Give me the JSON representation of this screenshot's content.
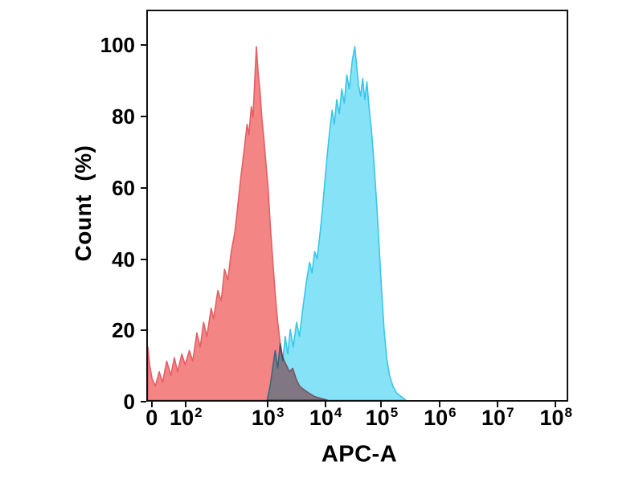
{
  "chart_data": {
    "type": "area",
    "chart_kind": "flow-cytometry-histogram-overlay",
    "title": "",
    "xlabel": "APC-A",
    "ylabel": "Count  (%)",
    "grid": false,
    "legend": "none",
    "axis_color": "#101010",
    "ylim": [
      0,
      110
    ],
    "y_ticks": [
      0,
      20,
      40,
      60,
      80,
      100
    ],
    "x_scale": "biexponential-log",
    "x_ticks": [
      {
        "base": "0",
        "exp": "",
        "pos": 0.013
      },
      {
        "base": "10",
        "exp": "2",
        "pos": 0.093
      },
      {
        "base": "10",
        "exp": "3",
        "pos": 0.287
      },
      {
        "base": "10",
        "exp": "4",
        "pos": 0.424
      },
      {
        "base": "10",
        "exp": "5",
        "pos": 0.557
      },
      {
        "base": "10",
        "exp": "6",
        "pos": 0.695
      },
      {
        "base": "10",
        "exp": "7",
        "pos": 0.832
      },
      {
        "base": "10",
        "exp": "8",
        "pos": 0.97
      }
    ],
    "x_unit": "fraction-of-axis-width",
    "y_unit": "percent-of-max-count",
    "series": [
      {
        "name": "red-histogram",
        "fill": "#F37E7E",
        "stroke": "#E35F63",
        "fill_opacity": 0.95,
        "blend": "",
        "peak": {
          "x_pos": 0.259,
          "y": 100
        },
        "points": [
          [
            0.0,
            15
          ],
          [
            0.004,
            10
          ],
          [
            0.01,
            6
          ],
          [
            0.018,
            4
          ],
          [
            0.027,
            8
          ],
          [
            0.035,
            5
          ],
          [
            0.045,
            11
          ],
          [
            0.055,
            7
          ],
          [
            0.063,
            12
          ],
          [
            0.071,
            8
          ],
          [
            0.081,
            13
          ],
          [
            0.089,
            10
          ],
          [
            0.099,
            14
          ],
          [
            0.107,
            11
          ],
          [
            0.117,
            19
          ],
          [
            0.125,
            15
          ],
          [
            0.133,
            22
          ],
          [
            0.141,
            18
          ],
          [
            0.151,
            26
          ],
          [
            0.157,
            23
          ],
          [
            0.167,
            31
          ],
          [
            0.175,
            28
          ],
          [
            0.183,
            37
          ],
          [
            0.191,
            34
          ],
          [
            0.199,
            42
          ],
          [
            0.207,
            47
          ],
          [
            0.213,
            53
          ],
          [
            0.219,
            60
          ],
          [
            0.225,
            66
          ],
          [
            0.231,
            72
          ],
          [
            0.237,
            78
          ],
          [
            0.241,
            75
          ],
          [
            0.247,
            83
          ],
          [
            0.251,
            80
          ],
          [
            0.255,
            90
          ],
          [
            0.259,
            100
          ],
          [
            0.263,
            93
          ],
          [
            0.268,
            87
          ],
          [
            0.272,
            80
          ],
          [
            0.277,
            74
          ],
          [
            0.282,
            67
          ],
          [
            0.287,
            60
          ],
          [
            0.292,
            50
          ],
          [
            0.298,
            40
          ],
          [
            0.304,
            30
          ],
          [
            0.31,
            22
          ],
          [
            0.316,
            16
          ],
          [
            0.322,
            12
          ],
          [
            0.33,
            10
          ],
          [
            0.338,
            8
          ],
          [
            0.346,
            9
          ],
          [
            0.354,
            6
          ],
          [
            0.362,
            4
          ],
          [
            0.372,
            3
          ],
          [
            0.384,
            2
          ],
          [
            0.398,
            1
          ],
          [
            0.412,
            0.5
          ],
          [
            0.428,
            0
          ]
        ]
      },
      {
        "name": "cyan-histogram",
        "fill": "#7CDFF6",
        "stroke": "#38C6E9",
        "fill_opacity": 0.92,
        "blend": "multiply",
        "peak": {
          "x_pos": 0.494,
          "y": 100
        },
        "points": [
          [
            0.285,
            0
          ],
          [
            0.292,
            4
          ],
          [
            0.298,
            9
          ],
          [
            0.304,
            14
          ],
          [
            0.31,
            9
          ],
          [
            0.316,
            16
          ],
          [
            0.322,
            11
          ],
          [
            0.328,
            18
          ],
          [
            0.334,
            13
          ],
          [
            0.34,
            20
          ],
          [
            0.347,
            15
          ],
          [
            0.355,
            22
          ],
          [
            0.362,
            18
          ],
          [
            0.37,
            26
          ],
          [
            0.378,
            33
          ],
          [
            0.386,
            39
          ],
          [
            0.392,
            36
          ],
          [
            0.398,
            42
          ],
          [
            0.404,
            40
          ],
          [
            0.41,
            46
          ],
          [
            0.416,
            53
          ],
          [
            0.422,
            61
          ],
          [
            0.428,
            69
          ],
          [
            0.434,
            76
          ],
          [
            0.44,
            82
          ],
          [
            0.445,
            78
          ],
          [
            0.451,
            85
          ],
          [
            0.457,
            81
          ],
          [
            0.463,
            88
          ],
          [
            0.469,
            84
          ],
          [
            0.475,
            92
          ],
          [
            0.481,
            88
          ],
          [
            0.488,
            96
          ],
          [
            0.494,
            100
          ],
          [
            0.499,
            94
          ],
          [
            0.503,
            89
          ],
          [
            0.508,
            86
          ],
          [
            0.513,
            91
          ],
          [
            0.518,
            85
          ],
          [
            0.523,
            90
          ],
          [
            0.528,
            83
          ],
          [
            0.534,
            76
          ],
          [
            0.54,
            67
          ],
          [
            0.546,
            56
          ],
          [
            0.552,
            44
          ],
          [
            0.558,
            31
          ],
          [
            0.564,
            20
          ],
          [
            0.57,
            12
          ],
          [
            0.577,
            7
          ],
          [
            0.585,
            4
          ],
          [
            0.594,
            2
          ],
          [
            0.605,
            1
          ],
          [
            0.616,
            0
          ]
        ]
      }
    ]
  }
}
